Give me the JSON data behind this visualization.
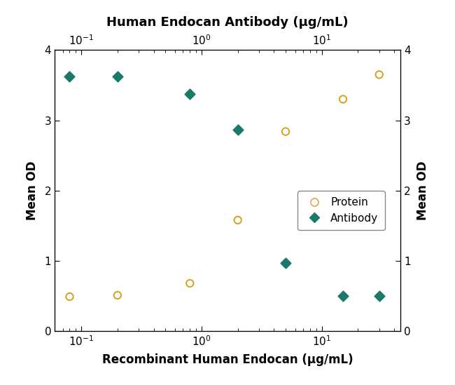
{
  "title_top": "Human Endocan Antibody (μg/mL)",
  "xlabel_bottom": "Recombinant Human Endocan (μg/mL)",
  "ylabel_left": "Mean OD",
  "ylabel_right": "Mean OD",
  "xlim": [
    0.06,
    45
  ],
  "ylim": [
    0,
    4
  ],
  "yticks": [
    0,
    1,
    2,
    3,
    4
  ],
  "protein_x": [
    0.08,
    0.2,
    0.8,
    2.0,
    5.0,
    15.0,
    30.0
  ],
  "protein_y": [
    0.49,
    0.51,
    0.68,
    1.58,
    2.84,
    3.3,
    3.65
  ],
  "antibody_x": [
    0.08,
    0.2,
    0.8,
    2.0,
    5.0,
    15.0,
    30.0
  ],
  "antibody_y": [
    3.62,
    3.62,
    3.37,
    2.87,
    0.97,
    0.5,
    0.5
  ],
  "protein_color": "#D4A020",
  "antibody_color": "#1A7A6A",
  "protein_label": "Protein",
  "antibody_label": "Antibody",
  "background_color": "#FFFFFF",
  "title_fontsize": 13,
  "label_fontsize": 12,
  "tick_fontsize": 11,
  "legend_fontsize": 11,
  "linewidth": 1.8,
  "marker_size": 55
}
